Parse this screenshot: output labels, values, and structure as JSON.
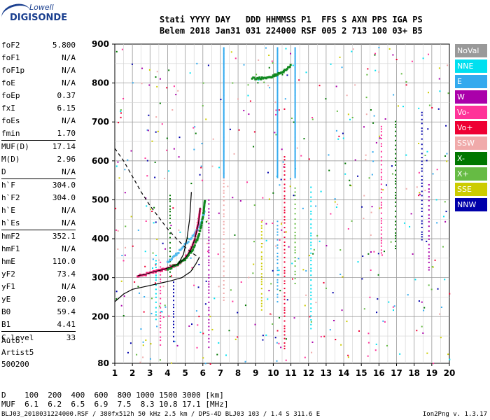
{
  "logo": {
    "line1": "Lowell",
    "line2": "DIGISONDE"
  },
  "header": {
    "line1": "Stati YYYY DAY   DDD HHMMSS P1  FFS S AXN PPS IGA PS",
    "line2": "Belem 2018 Jan31 031 224000 RSF 005 2 713 100 03+ B5"
  },
  "params": {
    "group1": [
      {
        "name": "foF2",
        "value": "5.800"
      },
      {
        "name": "foF1",
        "value": "N/A"
      },
      {
        "name": "foF1p",
        "value": "N/A"
      },
      {
        "name": "foE",
        "value": "N/A"
      },
      {
        "name": "foEp",
        "value": "0.37"
      },
      {
        "name": "fxI",
        "value": "6.15"
      },
      {
        "name": "foEs",
        "value": "N/A"
      },
      {
        "name": "fmin",
        "value": "1.70"
      }
    ],
    "group2": [
      {
        "name": "MUF(D)",
        "value": "17.14"
      },
      {
        "name": "M(D)",
        "value": "2.96"
      },
      {
        "name": "D",
        "value": "N/A"
      }
    ],
    "group3": [
      {
        "name": "h`F",
        "value": "304.0"
      },
      {
        "name": "h`F2",
        "value": "304.0"
      },
      {
        "name": "h`E",
        "value": "N/A"
      },
      {
        "name": "h`Es",
        "value": "N/A"
      }
    ],
    "group4": [
      {
        "name": "hmF2",
        "value": "352.1"
      },
      {
        "name": "hmF1",
        "value": "N/A"
      },
      {
        "name": "hmE",
        "value": "110.0"
      },
      {
        "name": "yF2",
        "value": "73.4"
      },
      {
        "name": "yF1",
        "value": "N/A"
      },
      {
        "name": "yE",
        "value": "20.0"
      },
      {
        "name": "B0",
        "value": "59.4"
      },
      {
        "name": "B1",
        "value": "4.41"
      }
    ],
    "group5": [
      {
        "name": "C-level",
        "value": "33"
      }
    ]
  },
  "auto": {
    "line1": "Auto:",
    "line2": "Artist5",
    "line3": "500200"
  },
  "muf_table": {
    "d_label": "D",
    "d_values": "100  200  400  600  800 1000 1500 3000 [km]",
    "muf_label": "MUF",
    "muf_values": "6.1  6.2  6.5  6.9  7.5  8.3 10.8 17.1 [MHz]"
  },
  "footer": "BLJ03_2018031224000.RSF / 380fx512h 50 kHz 2.5 km / DPS-4D BLJ03 103 / 1.4 S 311.6 E",
  "version": "Ion2Png v. 1.3.17",
  "legend": [
    {
      "label": "NoVal",
      "color": "#999999"
    },
    {
      "label": "NNE",
      "color": "#00e0f0"
    },
    {
      "label": "E",
      "color": "#33aaee"
    },
    {
      "label": "W",
      "color": "#aa00aa"
    },
    {
      "label": "Vo-",
      "color": "#ff3399"
    },
    {
      "label": "Vo+",
      "color": "#ee0033"
    },
    {
      "label": "SSW",
      "color": "#f0aaaa"
    },
    {
      "label": "X-",
      "color": "#007700"
    },
    {
      "label": "X+",
      "color": "#66bb44"
    },
    {
      "label": "SSE",
      "color": "#cccc00"
    },
    {
      "label": "NNW",
      "color": "#0000aa"
    }
  ],
  "chart_data": {
    "type": "scatter",
    "xlim": [
      1,
      20
    ],
    "ylim": [
      80,
      900
    ],
    "x_ticks": [
      1,
      2,
      3,
      4,
      5,
      6,
      7,
      8,
      9,
      10,
      11,
      12,
      13,
      14,
      15,
      16,
      17,
      18,
      19,
      20
    ],
    "y_ticks": [
      80,
      200,
      300,
      400,
      500,
      600,
      700,
      800,
      900
    ],
    "grid": true,
    "o_trace": [
      [
        2.3,
        305
      ],
      [
        2.7,
        308
      ],
      [
        3.2,
        315
      ],
      [
        3.7,
        320
      ],
      [
        4.2,
        328
      ],
      [
        4.6,
        335
      ],
      [
        5.0,
        350
      ],
      [
        5.3,
        370
      ],
      [
        5.55,
        400
      ],
      [
        5.75,
        440
      ],
      [
        5.85,
        480
      ]
    ],
    "x_trace": [
      [
        4.0,
        322
      ],
      [
        4.6,
        335
      ],
      [
        5.0,
        348
      ],
      [
        5.4,
        370
      ],
      [
        5.7,
        400
      ],
      [
        5.9,
        430
      ],
      [
        6.05,
        470
      ],
      [
        6.12,
        500
      ]
    ],
    "e_trace": [
      [
        4.0,
        340
      ],
      [
        4.5,
        360
      ],
      [
        5.0,
        385
      ],
      [
        5.5,
        410
      ],
      [
        5.9,
        440
      ],
      [
        6.1,
        470
      ]
    ],
    "multihop_trace": [
      [
        8.8,
        812
      ],
      [
        9.3,
        812
      ],
      [
        9.8,
        815
      ],
      [
        10.2,
        822
      ],
      [
        10.6,
        830
      ],
      [
        11.0,
        845
      ]
    ],
    "nne_verticals": [
      7.15,
      10.2,
      11.2
    ],
    "profile_solid": [
      [
        1.0,
        238
      ],
      [
        1.5,
        258
      ],
      [
        2.0,
        270
      ],
      [
        2.8,
        278
      ],
      [
        3.5,
        285
      ],
      [
        4.2,
        292
      ],
      [
        4.8,
        300
      ],
      [
        5.3,
        315
      ],
      [
        5.6,
        335
      ],
      [
        5.8,
        352
      ]
    ],
    "profile_dashed_upper": [
      [
        1.0,
        632
      ],
      [
        1.5,
        600
      ],
      [
        2.0,
        560
      ],
      [
        2.5,
        520
      ],
      [
        3.0,
        485
      ],
      [
        3.5,
        455
      ],
      [
        4.0,
        425
      ],
      [
        4.5,
        400
      ],
      [
        5.0,
        378
      ],
      [
        5.5,
        360
      ],
      [
        5.8,
        352
      ]
    ],
    "profile_rising": [
      [
        4.6,
        335
      ],
      [
        4.9,
        360
      ],
      [
        5.1,
        400
      ],
      [
        5.25,
        450
      ],
      [
        5.35,
        520
      ]
    ]
  }
}
